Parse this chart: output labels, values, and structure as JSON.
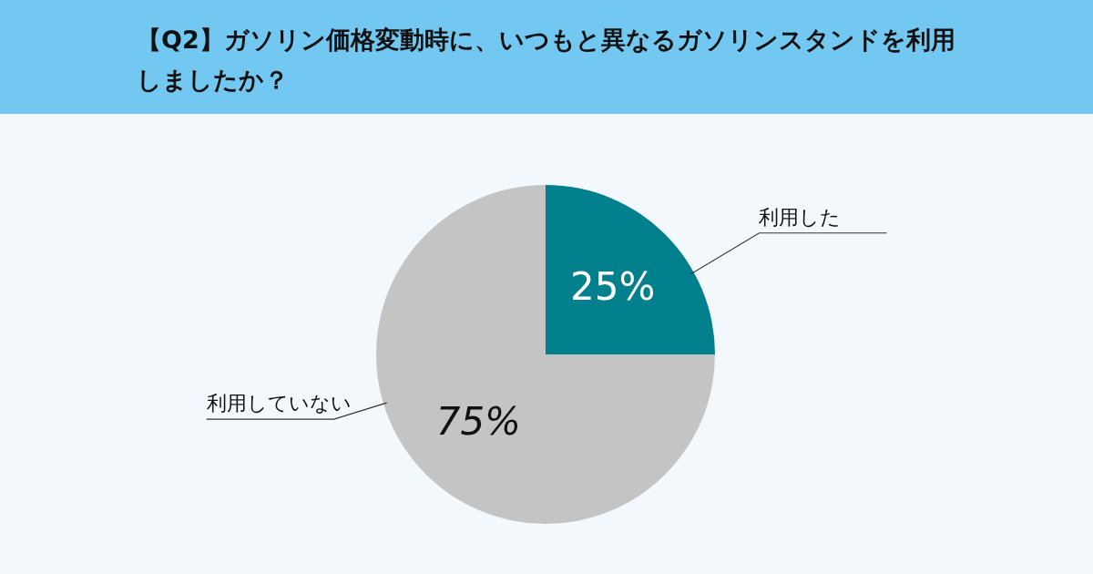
{
  "chart_data": {
    "type": "pie",
    "title": "【Q2】ガソリン価格変動時に、いつもと異なるガソリンスタンドを利用しましたか？",
    "categories": [
      "利用した",
      "利用していない"
    ],
    "values": [
      25,
      75
    ],
    "value_labels": [
      "25%",
      "75%"
    ],
    "colors": [
      "#007f8c",
      "#c4c4c4"
    ]
  }
}
